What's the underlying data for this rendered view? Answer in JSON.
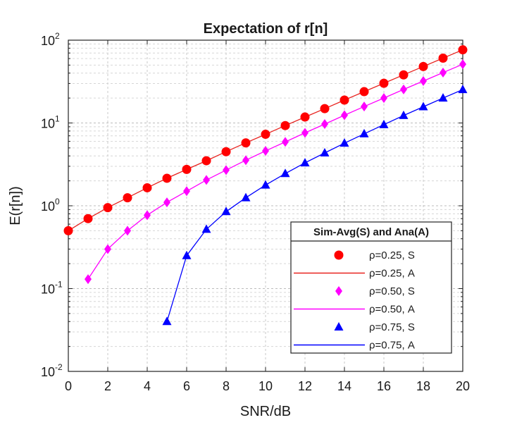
{
  "chart_data": {
    "type": "line",
    "title": "Expectation of r[n]",
    "xlabel": "SNR/dB",
    "ylabel": "E(r[n])",
    "xlim": [
      0,
      20
    ],
    "ylim": [
      0.01,
      100
    ],
    "yscale": "log",
    "grid": true,
    "x_ticks": [
      0,
      2,
      4,
      6,
      8,
      10,
      12,
      14,
      16,
      18,
      20
    ],
    "y_ticks": [
      {
        "base": "10",
        "exp": "-2",
        "value": 0.01
      },
      {
        "base": "10",
        "exp": "-1",
        "value": 0.1
      },
      {
        "base": "10",
        "exp": "0",
        "value": 1
      },
      {
        "base": "10",
        "exp": "1",
        "value": 10
      },
      {
        "base": "10",
        "exp": "2",
        "value": 100
      }
    ],
    "legend": {
      "title": "Sim-Avg(S) and Ana(A)",
      "placement": "lower-right",
      "entries": [
        {
          "label": "ρ=0.25, S",
          "kind": "marker",
          "marker": "circle",
          "color": "#ff0000"
        },
        {
          "label": "ρ=0.25, A",
          "kind": "line",
          "color": "#e8231f"
        },
        {
          "label": "ρ=0.50, S",
          "kind": "marker",
          "marker": "diamond",
          "color": "#ff00ff"
        },
        {
          "label": "ρ=0.50, A",
          "kind": "line",
          "color": "#ff00ff"
        },
        {
          "label": "ρ=0.75, S",
          "kind": "marker",
          "marker": "triangle",
          "color": "#0000ff"
        },
        {
          "label": "ρ=0.75, A",
          "kind": "line",
          "color": "#0000ff"
        }
      ]
    },
    "series": [
      {
        "key": "rho025",
        "marker": "circle",
        "color": "#ff0000",
        "line_color": "#e8231f",
        "x": [
          0,
          1,
          2,
          3,
          4,
          5,
          6,
          7,
          8,
          9,
          10,
          11,
          12,
          13,
          14,
          15,
          16,
          17,
          18,
          19,
          20
        ],
        "values": [
          0.5,
          0.7,
          0.95,
          1.25,
          1.65,
          2.15,
          2.75,
          3.5,
          4.5,
          5.75,
          7.3,
          9.3,
          11.8,
          14.9,
          18.9,
          23.9,
          30.2,
          38.1,
          48.1,
          60.7,
          76.5
        ]
      },
      {
        "key": "rho050",
        "marker": "diamond",
        "color": "#ff00ff",
        "line_color": "#ff00ff",
        "x": [
          1,
          2,
          3,
          4,
          5,
          6,
          7,
          8,
          9,
          10,
          11,
          12,
          13,
          14,
          15,
          16,
          17,
          18,
          19,
          20
        ],
        "values": [
          0.13,
          0.3,
          0.5,
          0.77,
          1.1,
          1.5,
          2.05,
          2.7,
          3.55,
          4.6,
          5.9,
          7.6,
          9.7,
          12.4,
          15.8,
          20.0,
          25.4,
          32.1,
          40.6,
          51.2
        ]
      },
      {
        "key": "rho075",
        "marker": "triangle",
        "color": "#0000ff",
        "line_color": "#0000ff",
        "x": [
          5,
          6,
          7,
          8,
          9,
          10,
          11,
          12,
          13,
          14,
          15,
          16,
          17,
          18,
          19,
          20
        ],
        "values": [
          0.04,
          0.25,
          0.52,
          0.85,
          1.25,
          1.78,
          2.45,
          3.3,
          4.35,
          5.7,
          7.4,
          9.55,
          12.3,
          15.7,
          20.0,
          25.3
        ]
      }
    ]
  }
}
